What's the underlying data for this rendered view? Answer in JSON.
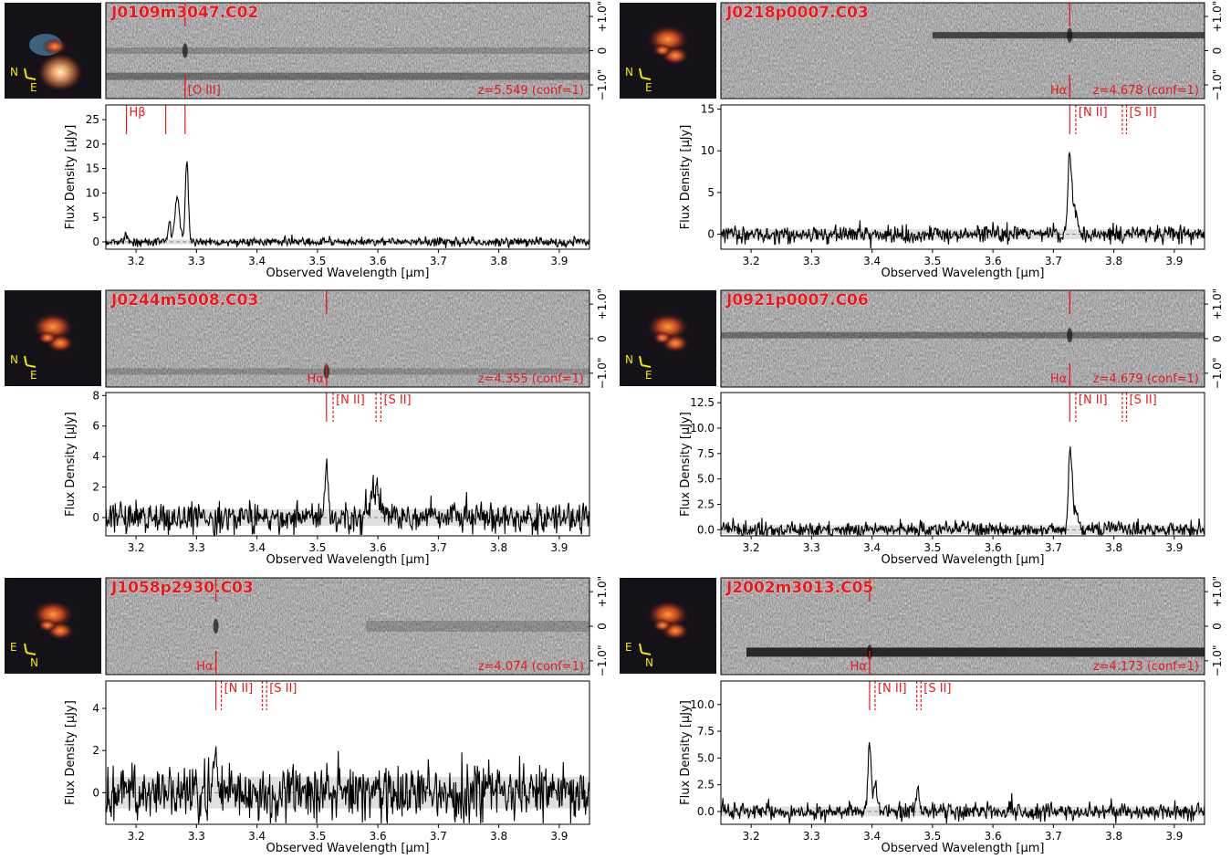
{
  "figure": {
    "xlabel": "Observed Wavelength [µm]",
    "ylabel": "Flux Density [µJy]",
    "x_ticks": [
      "3.2",
      "3.3",
      "3.4",
      "3.5",
      "3.6",
      "3.7",
      "3.8",
      "3.9"
    ],
    "spatial_ticks": [
      "+1.0\"",
      "0",
      "−1.0\""
    ],
    "colors": {
      "line": "#e8191e",
      "spectrum": "#000000",
      "band": "#d8d8d8",
      "compass": "#f5e600"
    }
  },
  "chart_data": [
    {
      "type": "line",
      "name": "J0109m3047.C02",
      "redshift_label": "z=5.549 (conf=1)",
      "xlim": [
        3.15,
        3.95
      ],
      "ylim": [
        -1.5,
        28
      ],
      "y_ticks": [
        0,
        5,
        10,
        15,
        20,
        25
      ],
      "y_tick_labels": [
        "0",
        "5",
        "10",
        "15",
        "20",
        "25"
      ],
      "noise": 0.5,
      "peaks": [
        {
          "x": 3.184,
          "amp": 1.5,
          "sigma": 0.002
        },
        {
          "x": 3.255,
          "amp": 4.0,
          "sigma": 0.002
        },
        {
          "x": 3.268,
          "amp": 9.0,
          "sigma": 0.004
        },
        {
          "x": 3.284,
          "amp": 16.5,
          "sigma": 0.0025
        }
      ],
      "line_markers": [
        {
          "x": 3.184,
          "style": "solid",
          "label": "Hβ"
        },
        {
          "x": 3.249,
          "style": "solid",
          "label": ""
        },
        {
          "x": 3.281,
          "style": "solid",
          "label": ""
        }
      ],
      "image_label": "[O III]",
      "image_line_x": 3.281,
      "compass": {
        "up": "N",
        "side": "E"
      },
      "trace_y": 0.0,
      "trace2_y": -0.75
    },
    {
      "type": "line",
      "name": "J0218p0007.C03",
      "redshift_label": "z=4.678 (conf=1)",
      "xlim": [
        3.15,
        3.95
      ],
      "ylim": [
        -1.8,
        15.5
      ],
      "y_ticks": [
        0,
        5,
        10,
        15
      ],
      "y_tick_labels": [
        "0",
        "5",
        "10",
        "15"
      ],
      "noise": 0.6,
      "peaks": [
        {
          "x": 3.727,
          "amp": 9.5,
          "sigma": 0.003
        },
        {
          "x": 3.735,
          "amp": 2.5,
          "sigma": 0.004
        }
      ],
      "line_markers": [
        {
          "x": 3.727,
          "style": "solid",
          "label": ""
        },
        {
          "x": 3.737,
          "style": "dashed",
          "label": "[N II]"
        },
        {
          "x": 3.814,
          "style": "dashed",
          "label": ""
        },
        {
          "x": 3.821,
          "style": "dashed",
          "label": "[S II]"
        }
      ],
      "image_label": "Hα",
      "image_line_x": 3.727,
      "compass": {
        "up": "N",
        "side": "E"
      },
      "trace_y": 0.45,
      "trace2_y": null
    },
    {
      "type": "line",
      "name": "J0244m5008.C03",
      "redshift_label": "z=4.355 (conf=1)",
      "xlim": [
        3.15,
        3.95
      ],
      "ylim": [
        -1.2,
        8.2
      ],
      "y_ticks": [
        0,
        2,
        4,
        6,
        8
      ],
      "y_tick_labels": [
        "0",
        "2",
        "4",
        "6",
        "8"
      ],
      "noise": 0.55,
      "peaks": [
        {
          "x": 3.515,
          "amp": 4.0,
          "sigma": 0.0025
        },
        {
          "x": 3.595,
          "amp": 2.0,
          "sigma": 0.007
        }
      ],
      "line_markers": [
        {
          "x": 3.515,
          "style": "solid",
          "label": ""
        },
        {
          "x": 3.526,
          "style": "dashed",
          "label": "[N II]"
        },
        {
          "x": 3.597,
          "style": "dashed",
          "label": ""
        },
        {
          "x": 3.605,
          "style": "dashed",
          "label": "[S II]"
        }
      ],
      "image_label": "Hα",
      "image_line_x": 3.515,
      "compass": {
        "up": "N",
        "side": "E"
      },
      "trace_y": -0.95,
      "trace2_y": null
    },
    {
      "type": "line",
      "name": "J0921p0007.C06",
      "redshift_label": "z=4.679 (conf=1)",
      "xlim": [
        3.15,
        3.95
      ],
      "ylim": [
        -0.6,
        13.5
      ],
      "y_ticks": [
        0,
        2.5,
        5,
        7.5,
        10,
        12.5
      ],
      "y_tick_labels": [
        "0.0",
        "2.5",
        "5.0",
        "7.5",
        "10.0",
        "12.5"
      ],
      "noise": 0.45,
      "peaks": [
        {
          "x": 3.728,
          "amp": 8.0,
          "sigma": 0.003
        },
        {
          "x": 3.737,
          "amp": 2.0,
          "sigma": 0.004
        }
      ],
      "line_markers": [
        {
          "x": 3.727,
          "style": "solid",
          "label": ""
        },
        {
          "x": 3.737,
          "style": "dashed",
          "label": "[N II]"
        },
        {
          "x": 3.814,
          "style": "dashed",
          "label": ""
        },
        {
          "x": 3.821,
          "style": "dashed",
          "label": "[S II]"
        }
      ],
      "image_label": "Hα",
      "image_line_x": 3.727,
      "compass": {
        "up": "N",
        "side": "E"
      },
      "trace_y": 0.1,
      "trace2_y": null
    },
    {
      "type": "line",
      "name": "J1058p2930.C03",
      "redshift_label": "z=4.074 (conf=1)",
      "xlim": [
        3.15,
        3.95
      ],
      "ylim": [
        -1.5,
        5.3
      ],
      "y_ticks": [
        0,
        2,
        4
      ],
      "y_tick_labels": [
        "0",
        "2",
        "4"
      ],
      "noise": 0.75,
      "peaks": [
        {
          "x": 3.328,
          "amp": 2.2,
          "sigma": 0.002
        },
        {
          "x": 3.334,
          "amp": 1.5,
          "sigma": 0.002
        }
      ],
      "line_markers": [
        {
          "x": 3.332,
          "style": "solid",
          "label": ""
        },
        {
          "x": 3.341,
          "style": "dashed",
          "label": "[N II]"
        },
        {
          "x": 3.409,
          "style": "dashed",
          "label": ""
        },
        {
          "x": 3.416,
          "style": "dashed",
          "label": "[S II]"
        }
      ],
      "image_label": "Hα",
      "image_line_x": 3.332,
      "compass": {
        "up": "E",
        "side": "N"
      },
      "trace_y": 0.0,
      "trace2_y": null
    },
    {
      "type": "line",
      "name": "J2002m3013.C05",
      "redshift_label": "z=4.173 (conf=1)",
      "xlim": [
        3.15,
        3.95
      ],
      "ylim": [
        -1.2,
        12.2
      ],
      "y_ticks": [
        0,
        2.5,
        5,
        7.5,
        10
      ],
      "y_tick_labels": [
        "0.0",
        "2.5",
        "5.0",
        "7.5",
        "10.0"
      ],
      "noise": 0.45,
      "peaks": [
        {
          "x": 3.396,
          "amp": 6.8,
          "sigma": 0.0025
        },
        {
          "x": 3.405,
          "amp": 2.5,
          "sigma": 0.003
        },
        {
          "x": 3.475,
          "amp": 2.2,
          "sigma": 0.003
        }
      ],
      "line_markers": [
        {
          "x": 3.396,
          "style": "solid",
          "label": ""
        },
        {
          "x": 3.405,
          "style": "dashed",
          "label": "[N II]"
        },
        {
          "x": 3.474,
          "style": "dashed",
          "label": ""
        },
        {
          "x": 3.481,
          "style": "dashed",
          "label": "[S II]"
        }
      ],
      "image_label": "Hα",
      "image_line_x": 3.396,
      "compass": {
        "up": "E",
        "side": "N"
      },
      "trace_y": -0.75,
      "trace2_y": null
    }
  ]
}
